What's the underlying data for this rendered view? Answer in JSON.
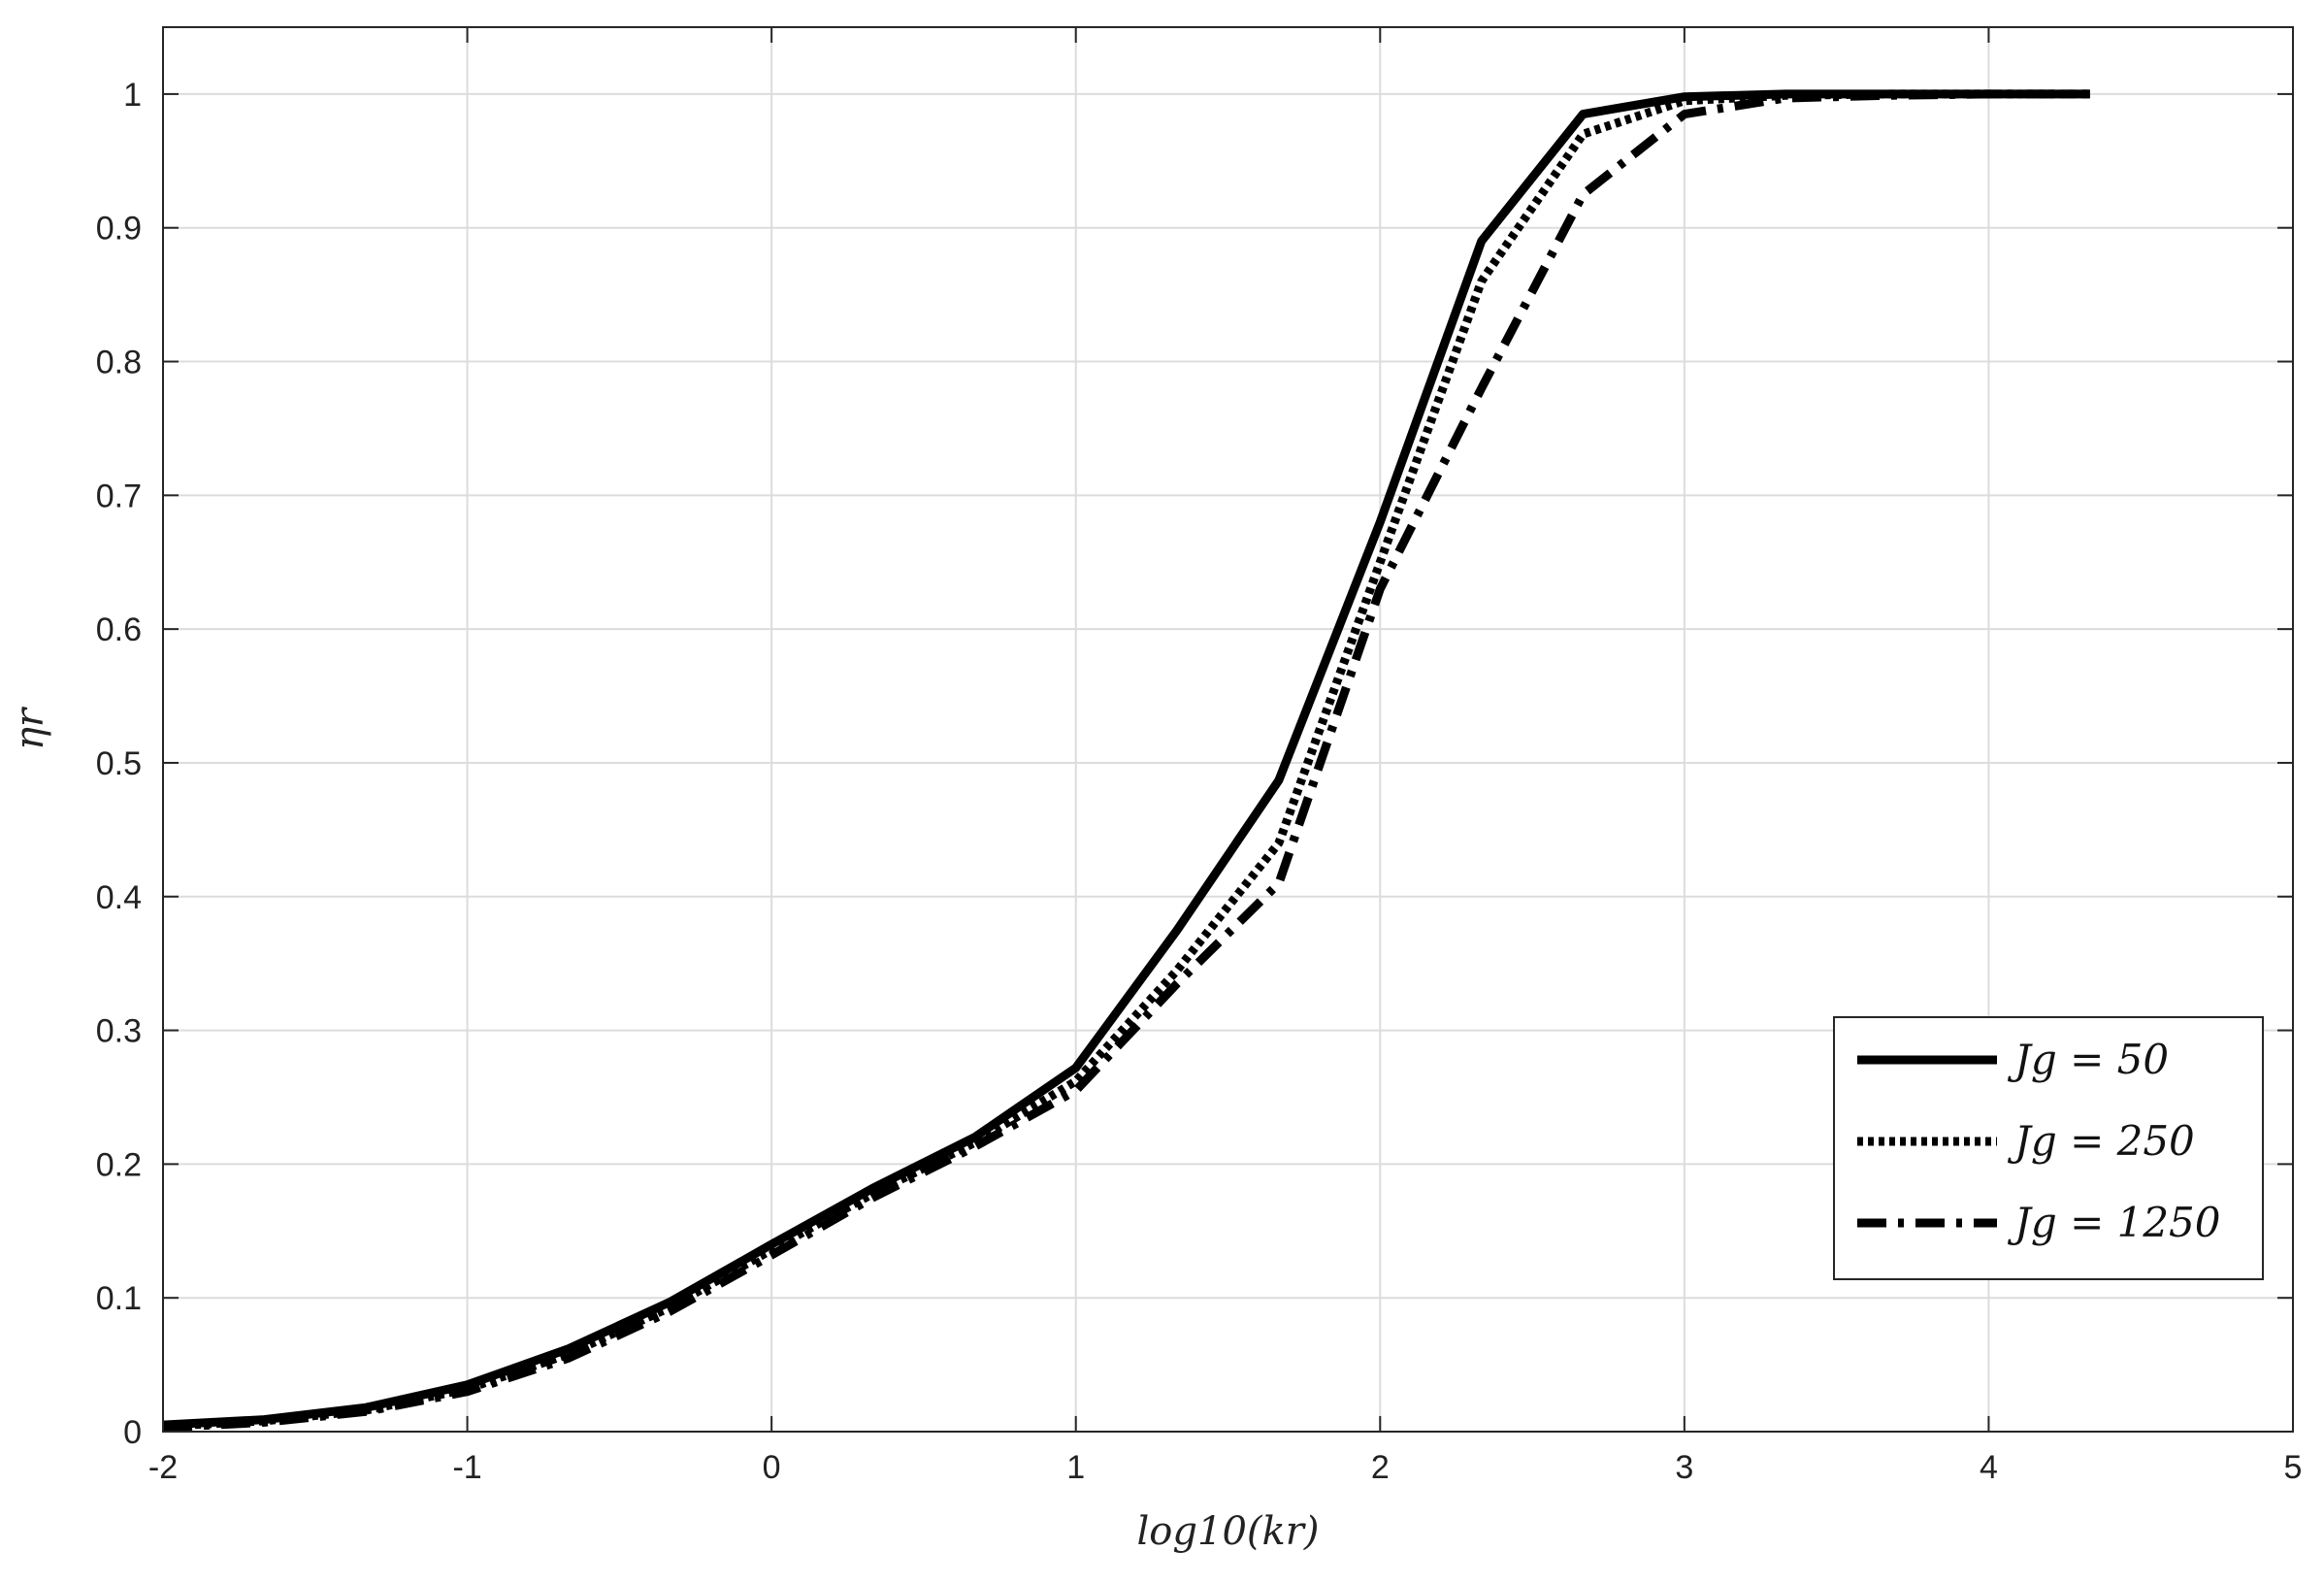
{
  "chart_data": {
    "type": "line",
    "xlabel": "log10(kr)",
    "ylabel": "ηr",
    "xlim": [
      -2,
      5
    ],
    "ylim": [
      0,
      1.05
    ],
    "xticks": [
      -2,
      -1,
      0,
      1,
      2,
      3,
      4,
      5
    ],
    "yticks": [
      0,
      0.1,
      0.2,
      0.3,
      0.4,
      0.5,
      0.6,
      0.7,
      0.8,
      0.9,
      1
    ],
    "grid": true,
    "legend_position": "right",
    "x": [
      -2,
      -1.667,
      -1.333,
      -1,
      -0.667,
      -0.333,
      0,
      0.333,
      0.667,
      1,
      1.333,
      1.667,
      2,
      2.333,
      2.667,
      3,
      3.333,
      3.667,
      4,
      4.333
    ],
    "series": [
      {
        "name": "Jg = 50",
        "style": "solid",
        "color": "#000000",
        "values": [
          0.005,
          0.009,
          0.018,
          0.035,
          0.062,
          0.097,
          0.14,
          0.182,
          0.22,
          0.272,
          0.375,
          0.487,
          0.68,
          0.89,
          0.985,
          0.998,
          1.0,
          1.0,
          1.0,
          1.0
        ]
      },
      {
        "name": "Jg = 250",
        "style": "dotted",
        "color": "#000000",
        "values": [
          0.004,
          0.008,
          0.016,
          0.032,
          0.058,
          0.093,
          0.136,
          0.178,
          0.216,
          0.262,
          0.345,
          0.44,
          0.65,
          0.86,
          0.97,
          0.995,
          0.999,
          1.0,
          1.0,
          1.0
        ]
      },
      {
        "name": "Jg = 1250",
        "style": "dashdot",
        "color": "#000000",
        "values": [
          0.003,
          0.007,
          0.015,
          0.03,
          0.055,
          0.09,
          0.132,
          0.175,
          0.213,
          0.255,
          0.335,
          0.41,
          0.63,
          0.78,
          0.925,
          0.985,
          0.997,
          0.999,
          1.0,
          1.0
        ]
      }
    ]
  },
  "legend": {
    "items": [
      {
        "label": "Jg = 50",
        "style": "solid"
      },
      {
        "label": "Jg = 250",
        "style": "dotted"
      },
      {
        "label": "Jg = 1250",
        "style": "dashdot"
      }
    ]
  }
}
